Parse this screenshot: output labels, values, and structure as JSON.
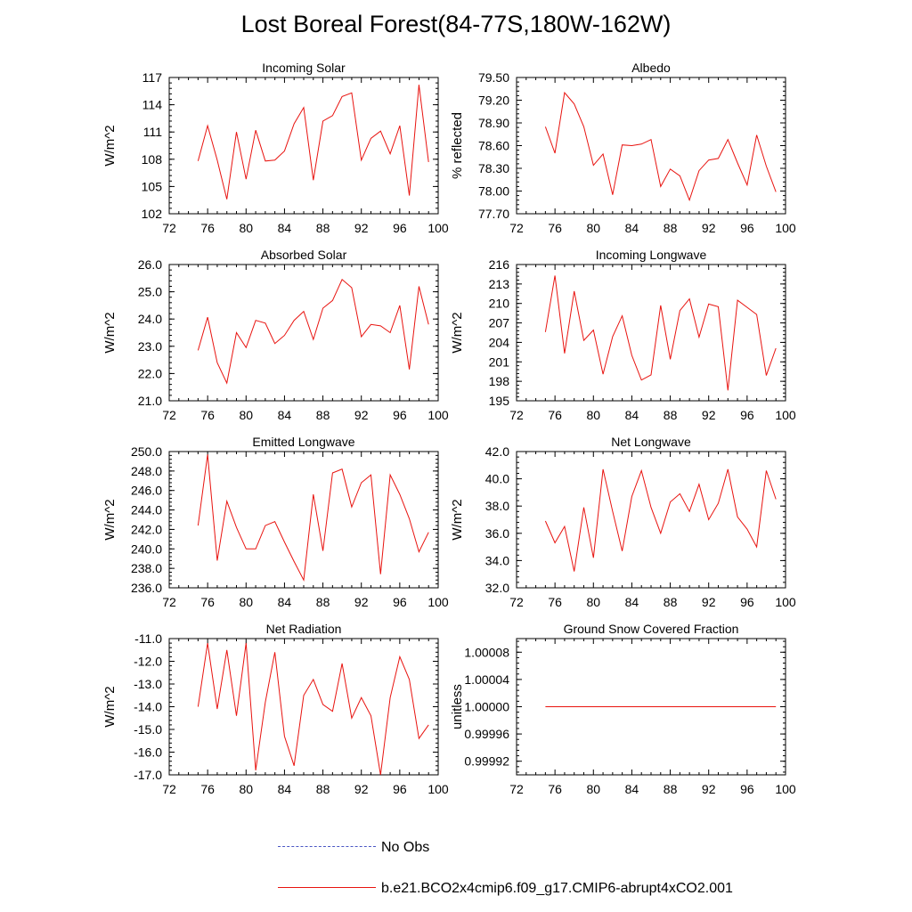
{
  "figure": {
    "title": "Lost Boreal Forest(84-77S,180W-162W)",
    "colors": {
      "model_line": "#e8130f",
      "obs_line": "#4a56c4",
      "axis": "#000000"
    }
  },
  "legend": [
    {
      "label": "No Obs",
      "style": "dashed",
      "color": "#4a56c4"
    },
    {
      "label": "b.e21.BCO2x4cmip6.f09_g17.CMIP6-abrupt4xCO2.001",
      "style": "solid",
      "color": "#e8130f"
    }
  ],
  "chart_data": [
    {
      "type": "line",
      "title": "Incoming Solar",
      "ylabel": "W/m^2",
      "xlim": [
        72,
        100
      ],
      "xticks": [
        "72",
        "76",
        "80",
        "84",
        "88",
        "92",
        "96",
        "100"
      ],
      "ylim": [
        102,
        117
      ],
      "yticks": [
        "102",
        "105",
        "108",
        "111",
        "114",
        "117"
      ],
      "series": [
        {
          "name": "b.e21.BCO2x4cmip6.f09_g17.CMIP6-abrupt4xCO2.001",
          "x": [
            75,
            76,
            77,
            78,
            79,
            80,
            81,
            82,
            83,
            84,
            85,
            86,
            87,
            88,
            89,
            90,
            91,
            92,
            93,
            94,
            95,
            96,
            97,
            98,
            99
          ],
          "values": [
            107.8,
            111.7,
            107.9,
            103.6,
            111.0,
            105.8,
            111.2,
            107.8,
            107.9,
            108.9,
            111.9,
            113.7,
            105.7,
            112.2,
            112.8,
            114.9,
            115.3,
            107.9,
            110.3,
            111.1,
            108.6,
            111.7,
            104.0,
            116.2,
            107.7
          ]
        }
      ]
    },
    {
      "type": "line",
      "title": "Albedo",
      "ylabel": "% reflected",
      "xlim": [
        72,
        100
      ],
      "xticks": [
        "72",
        "76",
        "80",
        "84",
        "88",
        "92",
        "96",
        "100"
      ],
      "ylim": [
        77.7,
        79.5
      ],
      "yticks": [
        "77.70",
        "78.00",
        "78.30",
        "78.60",
        "78.90",
        "79.20",
        "79.50"
      ],
      "series": [
        {
          "name": "b.e21.BCO2x4cmip6.f09_g17.CMIP6-abrupt4xCO2.001",
          "x": [
            75,
            76,
            77,
            78,
            79,
            80,
            81,
            82,
            83,
            84,
            85,
            86,
            87,
            88,
            89,
            90,
            91,
            92,
            93,
            94,
            95,
            96,
            97,
            98,
            99
          ],
          "values": [
            78.85,
            78.5,
            79.3,
            79.15,
            78.85,
            78.34,
            78.49,
            77.95,
            78.61,
            78.6,
            78.62,
            78.68,
            78.06,
            78.29,
            78.2,
            77.88,
            78.27,
            78.41,
            78.43,
            78.68,
            78.37,
            78.08,
            78.74,
            78.33,
            77.99
          ]
        }
      ]
    },
    {
      "type": "line",
      "title": "Absorbed Solar",
      "ylabel": "W/m^2",
      "xlim": [
        72,
        100
      ],
      "xticks": [
        "72",
        "76",
        "80",
        "84",
        "88",
        "92",
        "96",
        "100"
      ],
      "ylim": [
        21.0,
        26.0
      ],
      "yticks": [
        "21.0",
        "22.0",
        "23.0",
        "24.0",
        "25.0",
        "26.0"
      ],
      "series": [
        {
          "name": "b.e21.BCO2x4cmip6.f09_g17.CMIP6-abrupt4xCO2.001",
          "x": [
            75,
            76,
            77,
            78,
            79,
            80,
            81,
            82,
            83,
            84,
            85,
            86,
            87,
            88,
            89,
            90,
            91,
            92,
            93,
            94,
            95,
            96,
            97,
            98,
            99
          ],
          "values": [
            22.85,
            24.07,
            22.4,
            21.65,
            23.5,
            22.95,
            23.95,
            23.85,
            23.1,
            23.4,
            23.95,
            24.28,
            23.25,
            24.4,
            24.68,
            25.45,
            25.15,
            23.35,
            23.8,
            23.75,
            23.5,
            24.5,
            22.15,
            25.2,
            23.8
          ]
        }
      ]
    },
    {
      "type": "line",
      "title": "Incoming Longwave",
      "ylabel": "W/m^2",
      "xlim": [
        72,
        100
      ],
      "xticks": [
        "72",
        "76",
        "80",
        "84",
        "88",
        "92",
        "96",
        "100"
      ],
      "ylim": [
        195,
        216
      ],
      "yticks": [
        "195",
        "198",
        "201",
        "204",
        "207",
        "210",
        "213",
        "216"
      ],
      "series": [
        {
          "name": "b.e21.BCO2x4cmip6.f09_g17.CMIP6-abrupt4xCO2.001",
          "x": [
            75,
            76,
            77,
            78,
            79,
            80,
            81,
            82,
            83,
            84,
            85,
            86,
            87,
            88,
            89,
            90,
            91,
            92,
            93,
            94,
            95,
            96,
            97,
            98,
            99
          ],
          "values": [
            205.6,
            214.3,
            202.3,
            211.9,
            204.3,
            205.9,
            199.1,
            204.9,
            208.1,
            202.0,
            198.2,
            199.0,
            209.7,
            201.4,
            208.9,
            210.7,
            204.8,
            209.9,
            209.5,
            196.6,
            210.5,
            209.4,
            208.3,
            198.9,
            203.1
          ]
        }
      ]
    },
    {
      "type": "line",
      "title": "Emitted Longwave",
      "ylabel": "W/m^2",
      "xlim": [
        72,
        100
      ],
      "xticks": [
        "72",
        "76",
        "80",
        "84",
        "88",
        "92",
        "96",
        "100"
      ],
      "ylim": [
        236,
        250
      ],
      "yticks": [
        "236.0",
        "238.0",
        "240.0",
        "242.0",
        "244.0",
        "246.0",
        "248.0",
        "250.0"
      ],
      "series": [
        {
          "name": "b.e21.BCO2x4cmip6.f09_g17.CMIP6-abrupt4xCO2.001",
          "x": [
            75,
            76,
            77,
            78,
            79,
            80,
            81,
            82,
            83,
            84,
            85,
            86,
            87,
            88,
            89,
            90,
            91,
            92,
            93,
            94,
            95,
            96,
            97,
            98,
            99
          ],
          "values": [
            242.4,
            249.7,
            238.8,
            244.9,
            242.2,
            240.0,
            240.0,
            242.4,
            242.8,
            240.7,
            238.7,
            236.8,
            245.6,
            239.8,
            247.8,
            248.2,
            244.3,
            246.8,
            247.6,
            237.4,
            247.6,
            245.6,
            243.1,
            239.7,
            241.7
          ]
        }
      ]
    },
    {
      "type": "line",
      "title": "Net Longwave",
      "ylabel": "W/m^2",
      "xlim": [
        72,
        100
      ],
      "xticks": [
        "72",
        "76",
        "80",
        "84",
        "88",
        "92",
        "96",
        "100"
      ],
      "ylim": [
        32,
        42
      ],
      "yticks": [
        "32.0",
        "34.0",
        "36.0",
        "38.0",
        "40.0",
        "42.0"
      ],
      "series": [
        {
          "name": "b.e21.BCO2x4cmip6.f09_g17.CMIP6-abrupt4xCO2.001",
          "x": [
            75,
            76,
            77,
            78,
            79,
            80,
            81,
            82,
            83,
            84,
            85,
            86,
            87,
            88,
            89,
            90,
            91,
            92,
            93,
            94,
            95,
            96,
            97,
            98,
            99
          ],
          "values": [
            36.9,
            35.3,
            36.5,
            33.2,
            37.9,
            34.2,
            40.7,
            37.6,
            34.7,
            38.7,
            40.6,
            37.9,
            36.0,
            38.3,
            38.9,
            37.6,
            39.6,
            37.0,
            38.2,
            40.7,
            37.2,
            36.3,
            35.0,
            40.6,
            38.5
          ]
        }
      ]
    },
    {
      "type": "line",
      "title": "Net Radiation",
      "ylabel": "W/m^2",
      "xlim": [
        72,
        100
      ],
      "xticks": [
        "72",
        "76",
        "80",
        "84",
        "88",
        "92",
        "96",
        "100"
      ],
      "ylim": [
        -17.0,
        -11.0
      ],
      "yticks": [
        "-17.0",
        "-16.0",
        "-15.0",
        "-14.0",
        "-13.0",
        "-12.0",
        "-11.0"
      ],
      "series": [
        {
          "name": "b.e21.BCO2x4cmip6.f09_g17.CMIP6-abrupt4xCO2.001",
          "x": [
            75,
            76,
            77,
            78,
            79,
            80,
            81,
            82,
            83,
            84,
            85,
            86,
            87,
            88,
            89,
            90,
            91,
            92,
            93,
            94,
            95,
            96,
            97,
            98,
            99
          ],
          "values": [
            -14.0,
            -11.2,
            -14.1,
            -11.5,
            -14.4,
            -11.2,
            -16.8,
            -13.8,
            -11.6,
            -15.3,
            -16.6,
            -13.5,
            -12.8,
            -13.9,
            -14.2,
            -12.1,
            -14.5,
            -13.6,
            -14.4,
            -17.0,
            -13.6,
            -11.8,
            -12.8,
            -15.4,
            -14.8
          ]
        }
      ]
    },
    {
      "type": "line",
      "title": "Ground Snow Covered Fraction",
      "ylabel": "unitless",
      "xlim": [
        72,
        100
      ],
      "xticks": [
        "72",
        "76",
        "80",
        "84",
        "88",
        "92",
        "96",
        "100"
      ],
      "ylim": [
        0.9999,
        1.0001
      ],
      "yticks": [
        "0.99992",
        "0.99996",
        "1.00000",
        "1.00004",
        "1.00008"
      ],
      "ytickvals": [
        0.99992,
        0.99996,
        1.0,
        1.00004,
        1.00008
      ],
      "series": [
        {
          "name": "b.e21.BCO2x4cmip6.f09_g17.CMIP6-abrupt4xCO2.001",
          "x": [
            75,
            99
          ],
          "values": [
            1.0,
            1.0
          ]
        }
      ]
    }
  ]
}
